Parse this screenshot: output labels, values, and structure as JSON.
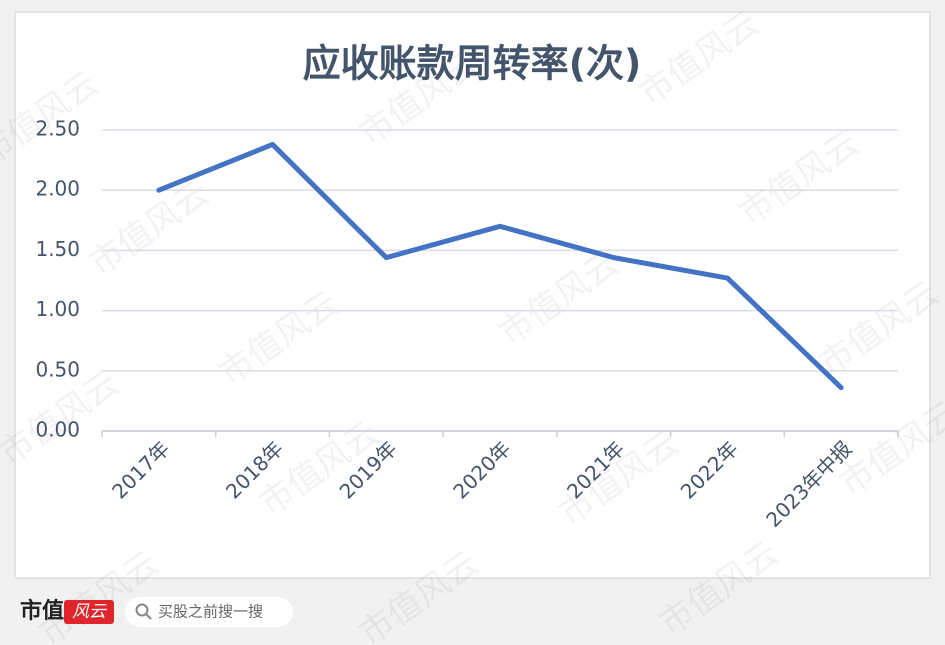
{
  "chart_data": {
    "type": "line",
    "title": "应收账款周转率(次)",
    "categories": [
      "2017年",
      "2018年",
      "2019年",
      "2020年",
      "2021年",
      "2022年",
      "2023年中报"
    ],
    "series": [
      {
        "name": "应收账款周转率",
        "color": "#4472c4",
        "values": [
          2.0,
          2.38,
          1.44,
          1.7,
          1.44,
          1.27,
          0.36
        ]
      }
    ],
    "ylim": [
      0,
      2.5
    ],
    "yticks": [
      {
        "value": 0,
        "label": "0.00"
      },
      {
        "value": 0.5,
        "label": "0.50"
      },
      {
        "value": 1,
        "label": "1.00"
      },
      {
        "value": 1.5,
        "label": "1.50"
      },
      {
        "value": 2,
        "label": "2.00"
      },
      {
        "value": 2.5,
        "label": "2.50"
      }
    ],
    "grid": true
  },
  "watermark": "市值风云",
  "footer": {
    "brand": "市值",
    "logo": "风云",
    "search_placeholder": "买股之前搜一搜"
  }
}
